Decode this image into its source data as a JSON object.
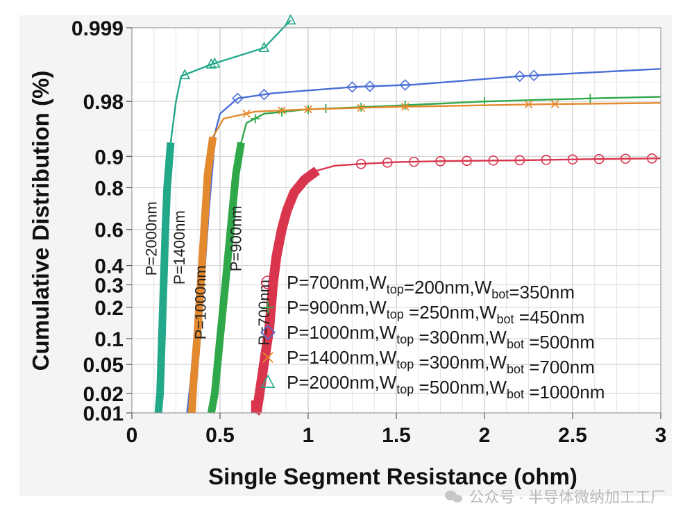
{
  "chart_data": {
    "type": "scatter",
    "title": "",
    "xlabel": "Single Segment Resistance (ohm)",
    "ylabel": "Cumulative Distribution (%)",
    "xlim": [
      0,
      3
    ],
    "ylim": [
      0.01,
      0.999
    ],
    "yscale": "normal-probability",
    "grid": true,
    "x_ticks": [
      0,
      0.5,
      1,
      1.5,
      2,
      2.5,
      3
    ],
    "x_tick_labels": [
      "0",
      "0.5",
      "1",
      "1.5",
      "2",
      "2.5",
      "3"
    ],
    "y_ticks": [
      0.01,
      0.02,
      0.05,
      0.1,
      0.2,
      0.3,
      0.4,
      0.6,
      0.8,
      0.9,
      0.98,
      0.999
    ],
    "y_tick_labels": [
      "0.01",
      "0.02",
      "0.05",
      "0.1",
      "0.2",
      "0.3",
      "0.4",
      "0.6",
      "0.8",
      "0.9",
      "0.98",
      "0.999"
    ],
    "legend_position": "bottom-right",
    "series": [
      {
        "name": "P=700nm, W_top=200nm, W_bot=350nm",
        "legend": {
          "pre": "P=700nm,W",
          "s1": "top",
          "mid": "=200nm,W",
          "s2": "bot",
          "post": "=350nm"
        },
        "curve_label": "P=700nm",
        "marker": "circle",
        "color": "#d9364e",
        "points": [
          [
            0.7,
            0.01
          ],
          [
            0.71,
            0.011
          ],
          [
            0.78,
            0.13
          ],
          [
            0.8,
            0.3
          ],
          [
            0.82,
            0.45
          ],
          [
            0.85,
            0.6
          ],
          [
            0.88,
            0.7
          ],
          [
            0.92,
            0.78
          ],
          [
            0.98,
            0.83
          ],
          [
            1.05,
            0.86
          ],
          [
            1.15,
            0.875
          ],
          [
            1.3,
            0.88
          ],
          [
            1.5,
            0.885
          ],
          [
            1.8,
            0.888
          ],
          [
            2.2,
            0.89
          ],
          [
            2.6,
            0.893
          ],
          [
            3.0,
            0.895
          ]
        ]
      },
      {
        "name": "P=900nm, W_top=250nm, W_bot=450nm",
        "legend": {
          "pre": "P=900nm,W",
          "s1": "top",
          "mid": " =250nm,W",
          "s2": "bot",
          "post": " =450nm"
        },
        "curve_label": "P=900nm",
        "marker": "plus",
        "color": "#2fa84a",
        "points": [
          [
            0.45,
            0.01
          ],
          [
            0.47,
            0.02
          ],
          [
            0.5,
            0.1
          ],
          [
            0.53,
            0.3
          ],
          [
            0.56,
            0.6
          ],
          [
            0.59,
            0.85
          ],
          [
            0.62,
            0.93
          ],
          [
            0.65,
            0.96
          ],
          [
            0.75,
            0.97
          ],
          [
            1.0,
            0.974
          ],
          [
            1.5,
            0.977
          ],
          [
            2.0,
            0.98
          ],
          [
            2.6,
            0.982
          ],
          [
            3.0,
            0.983
          ]
        ]
      },
      {
        "name": "P=1000nm, W_top=300nm, W_bot=500nm",
        "legend": {
          "pre": "P=1000nm,W",
          "s1": "top",
          "mid": " =300nm,W",
          "s2": "bot",
          "post": " =500nm"
        },
        "curve_label": "P=1000nm",
        "marker": "diamond",
        "color": "#4a6fd6",
        "points": [
          [
            0.33,
            0.01
          ],
          [
            0.35,
            0.03
          ],
          [
            0.37,
            0.1
          ],
          [
            0.39,
            0.3
          ],
          [
            0.42,
            0.7
          ],
          [
            0.45,
            0.92
          ],
          [
            0.5,
            0.97
          ],
          [
            0.6,
            0.982
          ],
          [
            0.8,
            0.985
          ],
          [
            1.25,
            0.988
          ],
          [
            1.6,
            0.989
          ],
          [
            2.2,
            0.992
          ],
          [
            3.0,
            0.994
          ]
        ]
      },
      {
        "name": "P=1400nm, W_top=300nm, W_bot=700nm",
        "legend": {
          "pre": "P=1400nm,W",
          "s1": "top",
          "mid": " =300nm,W",
          "s2": "bot",
          "post": " =700nm"
        },
        "curve_label": "P=1400nm",
        "marker": "x",
        "color": "#e48a2e",
        "points": [
          [
            0.34,
            0.01
          ],
          [
            0.35,
            0.03
          ],
          [
            0.37,
            0.1
          ],
          [
            0.39,
            0.3
          ],
          [
            0.41,
            0.6
          ],
          [
            0.43,
            0.85
          ],
          [
            0.46,
            0.94
          ],
          [
            0.52,
            0.965
          ],
          [
            0.7,
            0.972
          ],
          [
            1.0,
            0.974
          ],
          [
            1.5,
            0.976
          ],
          [
            2.3,
            0.978
          ],
          [
            3.0,
            0.979
          ]
        ]
      },
      {
        "name": "P=2000nm, W_top=500nm, W_bot=1000nm",
        "legend": {
          "pre": "P=2000nm,W",
          "s1": "top",
          "mid": " =500nm,W",
          "s2": "bot",
          "post": " =1000nm"
        },
        "curve_label": "P=2000nm",
        "marker": "triangle",
        "color": "#23a88a",
        "points": [
          [
            0.15,
            0.01
          ],
          [
            0.16,
            0.02
          ],
          [
            0.17,
            0.1
          ],
          [
            0.18,
            0.3
          ],
          [
            0.19,
            0.6
          ],
          [
            0.2,
            0.8
          ],
          [
            0.22,
            0.93
          ],
          [
            0.25,
            0.98
          ],
          [
            0.28,
            0.992
          ],
          [
            0.45,
            0.995
          ],
          [
            0.75,
            0.9975
          ],
          [
            0.9,
            0.9993
          ]
        ]
      }
    ]
  },
  "watermark": "公众号 · 半导体微纳加工工厂"
}
